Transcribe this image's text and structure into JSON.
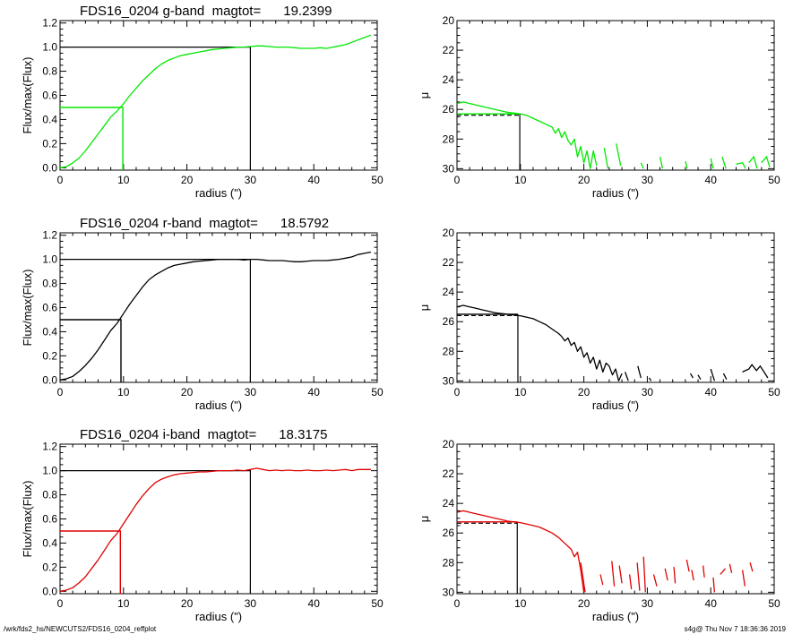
{
  "footer": {
    "left": "/wrk/fds2_hs/NEWCUTS2/FDS16_0204_reffplot",
    "right": "s4g@  Thu Nov  7 18:36:36 2019"
  },
  "chart_data": [
    {
      "type": "line",
      "title": "FDS16_0204 g-band  magtot=      19.2399",
      "xlabel": "radius (\")",
      "ylabel": "Flux/max(Flux)",
      "xlim": [
        0,
        50
      ],
      "ylim": [
        -0.02,
        1.22
      ],
      "xticks": [
        "0",
        "10",
        "20",
        "30",
        "40",
        "50"
      ],
      "yticks": [
        "0.0",
        "0.2",
        "0.4",
        "0.6",
        "0.8",
        "1.0",
        "1.2"
      ],
      "color": "#00e800",
      "series": [
        {
          "x": [
            0,
            1,
            2,
            3,
            4,
            5,
            6,
            7,
            8,
            9,
            10,
            11,
            12,
            13,
            14,
            15,
            16,
            17,
            18,
            19,
            20,
            21,
            22,
            23,
            24,
            25,
            26,
            27,
            28,
            29,
            30,
            31,
            32,
            33,
            34,
            35,
            36,
            37,
            38,
            39,
            40,
            41,
            42,
            43,
            44,
            45,
            46,
            47,
            48,
            49
          ],
          "y": [
            0.0,
            0.01,
            0.04,
            0.08,
            0.14,
            0.21,
            0.28,
            0.35,
            0.42,
            0.47,
            0.53,
            0.6,
            0.66,
            0.72,
            0.77,
            0.82,
            0.86,
            0.89,
            0.91,
            0.93,
            0.94,
            0.95,
            0.96,
            0.97,
            0.98,
            0.985,
            0.99,
            0.995,
            1.0,
            1.0,
            1.005,
            1.01,
            1.01,
            1.005,
            1.0,
            1.0,
            1.0,
            0.995,
            0.99,
            0.99,
            0.99,
            0.995,
            0.99,
            1.0,
            1.01,
            1.02,
            1.04,
            1.06,
            1.08,
            1.1
          ]
        }
      ],
      "reference_lines": {
        "half_flux_radius": 9.9,
        "half_flux_level": 0.5,
        "total_radius": 30,
        "total_level": 1.0
      }
    },
    {
      "type": "line",
      "xlabel": "radius (\")",
      "ylabel": "μ",
      "xlim": [
        0,
        50
      ],
      "ylim": [
        30.1,
        20
      ],
      "xticks": [
        "0",
        "10",
        "20",
        "30",
        "40",
        "50"
      ],
      "yticks": [
        "20",
        "22",
        "24",
        "26",
        "28",
        "30"
      ],
      "color": "#00e800",
      "series": [
        {
          "x": [
            0,
            1,
            2,
            3,
            4,
            5,
            6,
            7,
            8,
            9,
            10,
            11,
            12,
            13,
            14,
            15,
            15.5,
            16,
            16.5,
            17,
            17.5,
            18,
            18.5,
            19,
            19.5,
            20,
            20.5,
            21,
            21.5,
            22
          ],
          "y": [
            25.6,
            25.5,
            25.6,
            25.7,
            25.8,
            25.9,
            26.0,
            26.1,
            26.2,
            26.25,
            26.3,
            26.4,
            26.6,
            26.8,
            27.0,
            27.2,
            27.6,
            27.3,
            27.9,
            27.5,
            28.1,
            28.4,
            28.0,
            29.2,
            28.5,
            29.6,
            28.8,
            30.0,
            28.8,
            29.8
          ]
        }
      ],
      "segments": [
        [
          [
            23.2,
            28.6
          ],
          [
            23.8,
            30.0
          ]
        ],
        [
          [
            25.1,
            28.3
          ],
          [
            25.8,
            29.8
          ]
        ],
        [
          [
            29.0,
            29.6
          ],
          [
            29.4,
            30.0
          ]
        ],
        [
          [
            32.0,
            29.2
          ],
          [
            32.4,
            30.0
          ]
        ],
        [
          [
            36.0,
            29.5
          ],
          [
            36.3,
            30.0
          ]
        ],
        [
          [
            40.0,
            29.3
          ],
          [
            40.4,
            30.0
          ]
        ],
        [
          [
            41.8,
            29.2
          ],
          [
            42.4,
            30.0
          ]
        ],
        [
          [
            44.0,
            29.7
          ],
          [
            45.0,
            29.6
          ],
          [
            45.5,
            30.0
          ]
        ],
        [
          [
            46.0,
            29.6
          ],
          [
            46.8,
            29.2
          ],
          [
            47.3,
            30.0
          ]
        ],
        [
          [
            48.0,
            29.6
          ],
          [
            48.8,
            29.2
          ],
          [
            49.3,
            29.9
          ]
        ]
      ],
      "mu_eff": 26.3,
      "reference_lines": {
        "r_eff": 9.9
      }
    },
    {
      "type": "line",
      "title": "FDS16_0204 r-band  magtot=      18.5792",
      "xlabel": "radius (\")",
      "ylabel": "Flux/max(Flux)",
      "xlim": [
        0,
        50
      ],
      "ylim": [
        -0.02,
        1.22
      ],
      "xticks": [
        "0",
        "10",
        "20",
        "30",
        "40",
        "50"
      ],
      "yticks": [
        "0.0",
        "0.2",
        "0.4",
        "0.6",
        "0.8",
        "1.0",
        "1.2"
      ],
      "color": "#000000",
      "series": [
        {
          "x": [
            0,
            1,
            2,
            3,
            4,
            5,
            6,
            7,
            8,
            9,
            10,
            11,
            12,
            13,
            14,
            15,
            16,
            17,
            18,
            19,
            20,
            21,
            22,
            23,
            24,
            25,
            26,
            27,
            28,
            29,
            30,
            31,
            32,
            33,
            34,
            35,
            36,
            37,
            38,
            39,
            40,
            41,
            42,
            43,
            44,
            45,
            46,
            47,
            48,
            49
          ],
          "y": [
            0.0,
            0.01,
            0.03,
            0.07,
            0.12,
            0.18,
            0.25,
            0.33,
            0.41,
            0.47,
            0.55,
            0.63,
            0.7,
            0.77,
            0.83,
            0.87,
            0.9,
            0.93,
            0.95,
            0.96,
            0.97,
            0.98,
            0.985,
            0.99,
            0.995,
            1.0,
            1.0,
            1.0,
            1.0,
            0.995,
            1.0,
            1.0,
            0.995,
            0.99,
            0.99,
            0.99,
            0.985,
            0.98,
            0.98,
            0.985,
            0.99,
            0.99,
            0.99,
            0.995,
            1.0,
            1.01,
            1.02,
            1.04,
            1.05,
            1.06
          ]
        }
      ],
      "reference_lines": {
        "half_flux_radius": 9.6,
        "half_flux_level": 0.5,
        "total_radius": 30,
        "total_level": 1.0
      }
    },
    {
      "type": "line",
      "xlabel": "radius (\")",
      "ylabel": "μ",
      "xlim": [
        0,
        50
      ],
      "ylim": [
        30.1,
        20
      ],
      "xticks": [
        "0",
        "10",
        "20",
        "30",
        "40",
        "50"
      ],
      "yticks": [
        "20",
        "22",
        "24",
        "26",
        "28",
        "30"
      ],
      "color": "#000000",
      "series": [
        {
          "x": [
            0,
            1,
            2,
            3,
            4,
            5,
            6,
            7,
            8,
            9,
            10,
            11,
            12,
            13,
            14,
            15,
            16,
            16.5,
            17,
            17.5,
            18,
            18.5,
            19,
            19.5,
            20,
            20.5,
            21,
            21.5,
            22,
            22.5,
            23,
            23.5,
            24,
            24.5,
            25,
            25.5,
            26
          ],
          "y": [
            25.0,
            24.9,
            25.0,
            25.1,
            25.2,
            25.3,
            25.4,
            25.45,
            25.5,
            25.55,
            25.6,
            25.7,
            25.8,
            26.0,
            26.2,
            26.5,
            26.8,
            27.0,
            27.3,
            27.1,
            27.6,
            27.4,
            28.0,
            27.7,
            28.4,
            28.1,
            28.8,
            28.4,
            29.2,
            28.6,
            29.4,
            28.8,
            29.0,
            29.6,
            29.2,
            30.0,
            29.5
          ]
        }
      ],
      "segments": [
        [
          [
            26.5,
            29.4
          ],
          [
            27.0,
            30.0
          ]
        ],
        [
          [
            28.5,
            29.0
          ],
          [
            29.0,
            29.8
          ]
        ],
        [
          [
            30.3,
            29.8
          ],
          [
            30.6,
            30.0
          ]
        ],
        [
          [
            36.8,
            29.5
          ],
          [
            37.2,
            29.8
          ]
        ],
        [
          [
            38.0,
            29.6
          ],
          [
            38.4,
            29.9
          ]
        ],
        [
          [
            40.0,
            29.2
          ],
          [
            40.6,
            30.0
          ]
        ],
        [
          [
            42.0,
            29.5
          ],
          [
            42.5,
            29.9
          ]
        ],
        [
          [
            45.0,
            29.4
          ],
          [
            46.0,
            29.2
          ],
          [
            46.5,
            28.9
          ],
          [
            47.2,
            29.3
          ],
          [
            47.8,
            29.0
          ],
          [
            48.4,
            29.4
          ],
          [
            49.0,
            29.8
          ]
        ]
      ],
      "mu_eff": 25.5,
      "reference_lines": {
        "r_eff": 9.6
      }
    },
    {
      "type": "line",
      "title": "FDS16_0204 i-band  magtot=      18.3175",
      "xlabel": "radius (\")",
      "ylabel": "Flux/max(Flux)",
      "xlim": [
        0,
        50
      ],
      "ylim": [
        -0.02,
        1.22
      ],
      "xticks": [
        "0",
        "10",
        "20",
        "30",
        "40",
        "50"
      ],
      "yticks": [
        "0.0",
        "0.2",
        "0.4",
        "0.6",
        "0.8",
        "1.0",
        "1.2"
      ],
      "color": "#e00000",
      "series": [
        {
          "x": [
            0,
            1,
            2,
            3,
            4,
            5,
            6,
            7,
            8,
            9,
            10,
            11,
            12,
            13,
            14,
            15,
            16,
            17,
            18,
            19,
            20,
            21,
            22,
            23,
            24,
            25,
            26,
            27,
            28,
            29,
            30,
            31,
            32,
            33,
            34,
            35,
            36,
            37,
            38,
            39,
            40,
            41,
            42,
            43,
            44,
            45,
            46,
            47,
            48,
            49
          ],
          "y": [
            0.0,
            0.01,
            0.03,
            0.07,
            0.12,
            0.19,
            0.26,
            0.34,
            0.42,
            0.48,
            0.56,
            0.64,
            0.72,
            0.79,
            0.85,
            0.9,
            0.93,
            0.95,
            0.965,
            0.975,
            0.98,
            0.985,
            0.99,
            0.99,
            0.995,
            1.0,
            1.0,
            1.0,
            1.005,
            1.0,
            1.01,
            1.02,
            1.01,
            1.0,
            1.005,
            1.0,
            1.005,
            1.0,
            1.0,
            1.005,
            1.0,
            1.0,
            1.005,
            1.0,
            1.005,
            1.01,
            1.0,
            1.01,
            1.01,
            1.01
          ]
        }
      ],
      "reference_lines": {
        "half_flux_radius": 9.5,
        "half_flux_level": 0.5,
        "total_radius": 30,
        "total_level": 1.0
      }
    },
    {
      "type": "line",
      "xlabel": "radius (\")",
      "ylabel": "μ",
      "xlim": [
        0,
        50
      ],
      "ylim": [
        30.1,
        20
      ],
      "xticks": [
        "0",
        "10",
        "20",
        "30",
        "40",
        "50"
      ],
      "yticks": [
        "20",
        "22",
        "24",
        "26",
        "28",
        "30"
      ],
      "color": "#e00000",
      "series": [
        {
          "x": [
            0,
            1,
            2,
            3,
            4,
            5,
            6,
            7,
            8,
            9,
            10,
            11,
            12,
            13,
            14,
            15,
            16,
            17,
            18,
            18.5,
            19,
            19.5,
            20
          ],
          "y": [
            24.6,
            24.5,
            24.6,
            24.7,
            24.8,
            24.9,
            25.0,
            25.1,
            25.2,
            25.25,
            25.3,
            25.4,
            25.5,
            25.6,
            25.8,
            26.0,
            26.3,
            26.7,
            27.1,
            27.6,
            27.3,
            28.5,
            30.0
          ]
        }
      ],
      "segments": [
        [
          [
            19.5,
            28.0
          ],
          [
            20.2,
            30.0
          ]
        ],
        [
          [
            22.6,
            28.8
          ],
          [
            23.0,
            29.5
          ]
        ],
        [
          [
            24.4,
            27.9
          ],
          [
            24.8,
            29.6
          ]
        ],
        [
          [
            25.6,
            28.2
          ],
          [
            26.0,
            29.4
          ]
        ],
        [
          [
            27.2,
            28.8
          ],
          [
            27.5,
            29.8
          ]
        ],
        [
          [
            28.4,
            28.0
          ],
          [
            28.8,
            29.9
          ]
        ],
        [
          [
            29.4,
            27.6
          ],
          [
            29.7,
            30.0
          ]
        ],
        [
          [
            31.0,
            28.8
          ],
          [
            31.5,
            29.6
          ]
        ],
        [
          [
            32.8,
            28.4
          ],
          [
            33.2,
            29.2
          ]
        ],
        [
          [
            34.2,
            28.3
          ],
          [
            34.4,
            29.4
          ]
        ],
        [
          [
            36.2,
            27.8
          ],
          [
            36.6,
            28.6
          ]
        ],
        [
          [
            37.0,
            28.5
          ],
          [
            37.3,
            29.2
          ]
        ],
        [
          [
            38.8,
            28.2
          ],
          [
            39.0,
            29.0
          ]
        ],
        [
          [
            40.4,
            29.0
          ],
          [
            40.6,
            30.0
          ]
        ],
        [
          [
            41.5,
            28.8
          ],
          [
            42.3,
            28.4
          ]
        ],
        [
          [
            43.0,
            28.1
          ],
          [
            43.3,
            28.7
          ]
        ],
        [
          [
            45.0,
            28.5
          ],
          [
            45.4,
            29.6
          ]
        ],
        [
          [
            46.2,
            28.0
          ],
          [
            46.6,
            28.6
          ]
        ]
      ],
      "mu_eff": 25.25,
      "reference_lines": {
        "r_eff": 9.5
      }
    }
  ]
}
